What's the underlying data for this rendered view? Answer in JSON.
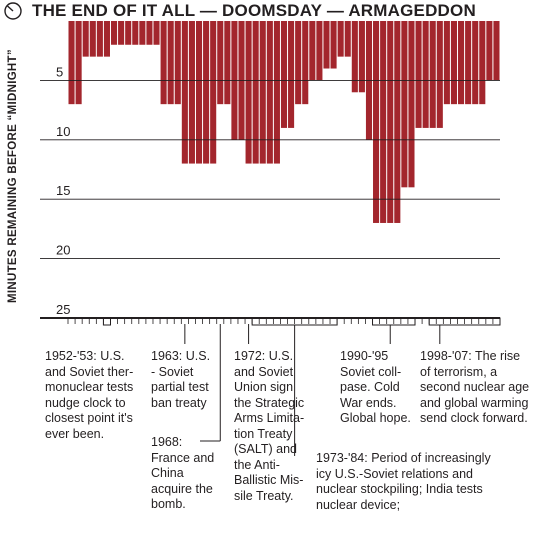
{
  "chart_data": {
    "type": "bar",
    "title": "THE END OF IT ALL — DOOMSDAY — ARMAGEDDON",
    "ylabel": "MINUTES REMAINING BEFORE “MIDNIGHT”",
    "yaxis_inverted": true,
    "ylim": [
      0,
      25
    ],
    "yticks": [
      5,
      10,
      15,
      20,
      25
    ],
    "x_start_year": 1947,
    "x_end_year": 2007,
    "color": "#a3262d",
    "grid": true,
    "values": [
      7,
      7,
      3,
      3,
      3,
      3,
      2,
      2,
      2,
      2,
      2,
      2,
      2,
      7,
      7,
      7,
      12,
      12,
      12,
      12,
      12,
      7,
      7,
      10,
      10,
      12,
      12,
      12,
      12,
      12,
      9,
      9,
      7,
      7,
      5,
      5,
      4,
      4,
      3,
      3,
      6,
      6,
      10,
      17,
      17,
      17,
      17,
      14,
      14,
      9,
      9,
      9,
      9,
      7,
      7,
      7,
      7,
      7,
      7,
      5,
      5
    ]
  },
  "annotations": [
    {
      "id": "a1",
      "lines": [
        "1952-'53: U.S.",
        "and Soviet ther-",
        "monuclear tests",
        "nudge clock to",
        "closest point it's",
        "ever been."
      ]
    },
    {
      "id": "a2",
      "lines": [
        "1963: U.S.",
        "- Soviet",
        "partial test",
        "ban treaty"
      ]
    },
    {
      "id": "a3",
      "lines": [
        "1968:",
        "France and",
        "China",
        "acquire the",
        "bomb."
      ]
    },
    {
      "id": "a4",
      "lines": [
        "1972: U.S.",
        "and Soviet",
        "Union sign",
        "the Strategic",
        "Arms Limita-",
        "tion Treaty",
        "(SALT) and",
        "the Anti-",
        "Ballistic Mis-",
        "sile Treaty."
      ]
    },
    {
      "id": "a5",
      "lines": [
        "1973-'84: Period of increasingly",
        "icy U.S.-Soviet relations and",
        "nuclear stockpiling; India tests",
        "nuclear device;"
      ]
    },
    {
      "id": "a6",
      "lines": [
        "1990-'95",
        "Soviet coll-",
        "pase. Cold",
        "War ends.",
        "Global hope."
      ]
    },
    {
      "id": "a7",
      "lines": [
        "1998-'07: The rise",
        "of terrorism, a",
        "second nuclear age",
        "and global warming",
        "send clock forward."
      ]
    }
  ]
}
